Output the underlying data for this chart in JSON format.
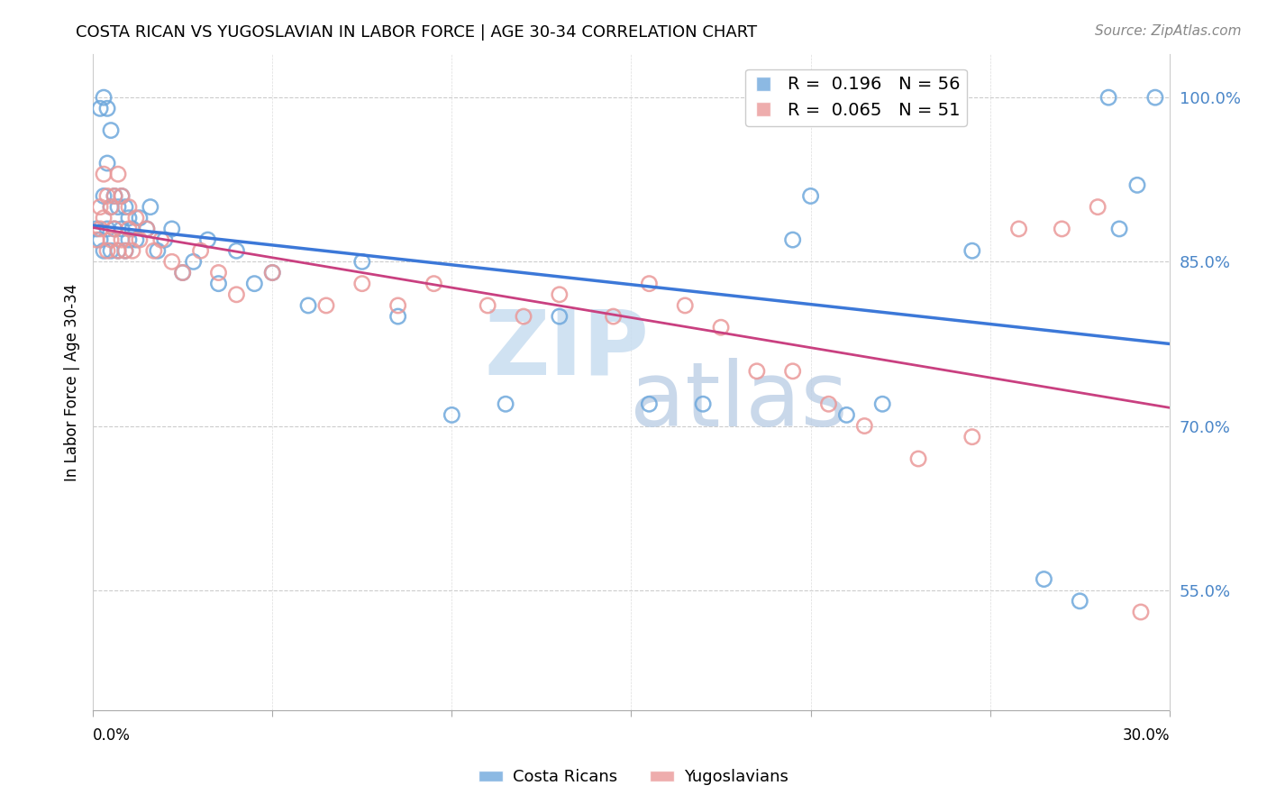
{
  "title": "COSTA RICAN VS YUGOSLAVIAN IN LABOR FORCE | AGE 30-34 CORRELATION CHART",
  "source": "Source: ZipAtlas.com",
  "ylabel": "In Labor Force | Age 30-34",
  "ytick_labels": [
    "100.0%",
    "85.0%",
    "70.0%",
    "55.0%"
  ],
  "ytick_values": [
    1.0,
    0.85,
    0.7,
    0.55
  ],
  "xlim": [
    0.0,
    0.3
  ],
  "ylim": [
    0.44,
    1.04
  ],
  "legend_blue_R": 0.196,
  "legend_blue_N": 56,
  "legend_pink_R": 0.065,
  "legend_pink_N": 51,
  "blue_color": "#6fa8dc",
  "pink_color": "#ea9999",
  "trendline_blue": "#3c78d8",
  "trendline_pink": "#c94080",
  "blue_x": [
    0.001,
    0.002,
    0.002,
    0.003,
    0.003,
    0.003,
    0.004,
    0.004,
    0.004,
    0.005,
    0.005,
    0.005,
    0.006,
    0.006,
    0.007,
    0.007,
    0.008,
    0.008,
    0.009,
    0.009,
    0.01,
    0.01,
    0.011,
    0.012,
    0.013,
    0.015,
    0.016,
    0.018,
    0.02,
    0.022,
    0.025,
    0.028,
    0.032,
    0.035,
    0.04,
    0.045,
    0.05,
    0.06,
    0.075,
    0.085,
    0.1,
    0.115,
    0.13,
    0.155,
    0.17,
    0.195,
    0.2,
    0.21,
    0.22,
    0.245,
    0.265,
    0.275,
    0.283,
    0.286,
    0.291,
    0.296
  ],
  "blue_y": [
    0.88,
    0.87,
    0.99,
    0.86,
    0.91,
    1.0,
    0.88,
    0.94,
    0.99,
    0.86,
    0.9,
    0.97,
    0.88,
    0.91,
    0.86,
    0.9,
    0.88,
    0.91,
    0.86,
    0.9,
    0.87,
    0.89,
    0.88,
    0.87,
    0.89,
    0.88,
    0.9,
    0.86,
    0.87,
    0.88,
    0.84,
    0.85,
    0.87,
    0.83,
    0.86,
    0.83,
    0.84,
    0.81,
    0.85,
    0.8,
    0.71,
    0.72,
    0.8,
    0.72,
    0.72,
    0.87,
    0.91,
    0.71,
    0.72,
    0.86,
    0.56,
    0.54,
    1.0,
    0.88,
    0.92,
    1.0
  ],
  "pink_x": [
    0.001,
    0.002,
    0.002,
    0.003,
    0.003,
    0.004,
    0.004,
    0.005,
    0.005,
    0.006,
    0.006,
    0.007,
    0.007,
    0.008,
    0.008,
    0.009,
    0.01,
    0.01,
    0.011,
    0.012,
    0.013,
    0.015,
    0.017,
    0.019,
    0.022,
    0.025,
    0.03,
    0.035,
    0.04,
    0.05,
    0.065,
    0.075,
    0.085,
    0.095,
    0.11,
    0.12,
    0.13,
    0.145,
    0.155,
    0.165,
    0.175,
    0.185,
    0.195,
    0.205,
    0.215,
    0.23,
    0.245,
    0.258,
    0.27,
    0.28,
    0.292
  ],
  "pink_y": [
    0.87,
    0.88,
    0.9,
    0.89,
    0.93,
    0.86,
    0.91,
    0.87,
    0.9,
    0.88,
    0.91,
    0.86,
    0.93,
    0.87,
    0.91,
    0.86,
    0.88,
    0.9,
    0.86,
    0.89,
    0.87,
    0.88,
    0.86,
    0.87,
    0.85,
    0.84,
    0.86,
    0.84,
    0.82,
    0.84,
    0.81,
    0.83,
    0.81,
    0.83,
    0.81,
    0.8,
    0.82,
    0.8,
    0.83,
    0.81,
    0.79,
    0.75,
    0.75,
    0.72,
    0.7,
    0.67,
    0.69,
    0.88,
    0.88,
    0.9,
    0.53
  ]
}
